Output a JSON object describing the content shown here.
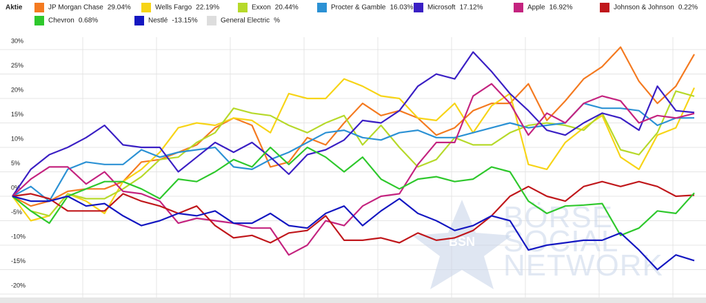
{
  "chart_data": {
    "type": "line",
    "legend_title": "Aktie",
    "watermark": [
      "BÖRSE",
      "SOCIAL",
      "NETWORK"
    ],
    "watermark_badge": "BSN",
    "categories": [
      null,
      null,
      null,
      null,
      null,
      null,
      null,
      null,
      null,
      null,
      null,
      null,
      null,
      null,
      null,
      null,
      null,
      null,
      null,
      null,
      null,
      null,
      null,
      null,
      null,
      null,
      null,
      null,
      null,
      null,
      null,
      null,
      null,
      null,
      null,
      null,
      null,
      null
    ],
    "ylim": [
      -20.7,
      31.4
    ],
    "yticks": [
      {
        "value": -20,
        "label": "-20%"
      },
      {
        "value": -15,
        "label": "-15%"
      },
      {
        "value": -10,
        "label": "-10%"
      },
      {
        "value": -5,
        "label": "-5%"
      },
      {
        "value": 0,
        "label": "0%"
      },
      {
        "value": 5,
        "label": "5%"
      },
      {
        "value": 10,
        "label": "10%"
      },
      {
        "value": 15,
        "label": "15%"
      },
      {
        "value": 20,
        "label": "20%"
      },
      {
        "value": 25,
        "label": "25%"
      },
      {
        "value": 30,
        "label": "30%"
      }
    ],
    "grid": true,
    "series": [
      {
        "name": "JP Morgan Chase",
        "change_label": "29.04%",
        "color": "#f47a20",
        "values": [
          0,
          -2,
          -1,
          1,
          1.5,
          1.5,
          3,
          7,
          7.5,
          9,
          10.5,
          14,
          16,
          14.5,
          6,
          7,
          12,
          10.5,
          15,
          19,
          16.5,
          17.5,
          16,
          12.5,
          14,
          17.5,
          19,
          19,
          23,
          15.5,
          19.5,
          24,
          26.5,
          30.5,
          23.5,
          19,
          22.5,
          29.04
        ]
      },
      {
        "name": "Wells Fargo",
        "change_label": "22.19%",
        "color": "#f7d417",
        "values": [
          0,
          -5,
          -4,
          0.5,
          -1,
          -3.5,
          3,
          5.5,
          9,
          14,
          15,
          14.5,
          16,
          15.5,
          13,
          21,
          20,
          20,
          24,
          22.5,
          20.5,
          20,
          16,
          15.5,
          19,
          13,
          18.5,
          21,
          6.5,
          5.5,
          11,
          14,
          16.5,
          8,
          5.5,
          12.5,
          14,
          22.19
        ]
      },
      {
        "name": "Exxon",
        "change_label": "20.44%",
        "color": "#b6d92a",
        "values": [
          0,
          -3,
          -4,
          0.5,
          -0.5,
          -0.5,
          1.5,
          4,
          7.5,
          8,
          11,
          13,
          18,
          17,
          16.5,
          14.5,
          13,
          15,
          16.5,
          10.5,
          14.5,
          10,
          6,
          7.5,
          12,
          10.5,
          10.5,
          13,
          14.5,
          15,
          14.5,
          13.5,
          17,
          9.5,
          8.5,
          13,
          21.5,
          20.44
        ]
      },
      {
        "name": "Procter & Gamble",
        "change_label": "16.03%",
        "color": "#2b91d4",
        "values": [
          0,
          2,
          -1,
          5.5,
          7,
          6.5,
          6.5,
          9.5,
          8,
          9,
          9.5,
          10,
          6,
          5.5,
          7.5,
          9,
          11,
          13,
          13.5,
          12,
          11.5,
          13,
          13.5,
          12,
          12,
          13,
          14,
          15,
          14,
          14.5,
          15,
          19,
          18,
          18,
          17.5,
          14.5,
          16,
          16.03
        ]
      },
      {
        "name": "Microsoft",
        "change_label": "17.12%",
        "color": "#3a1fc4",
        "values": [
          0,
          5.5,
          8.5,
          10,
          12,
          14.5,
          10.5,
          10,
          10,
          5,
          8,
          11,
          9,
          11,
          8,
          4.5,
          8.5,
          9.5,
          11.5,
          15.5,
          15,
          17.5,
          22.5,
          25,
          24,
          29.5,
          25.5,
          21,
          17.5,
          13.5,
          12.5,
          15,
          17,
          16,
          13.5,
          22.5,
          17.5,
          17.12
        ]
      },
      {
        "name": "Apple",
        "change_label": "16.92%",
        "color": "#c4237f",
        "values": [
          0,
          3.5,
          6,
          6,
          2.5,
          5,
          1,
          0.5,
          -1,
          -5.5,
          -4.5,
          -5,
          -5.5,
          -6.5,
          -6.5,
          -12,
          -10,
          -5,
          -6,
          -2,
          0,
          0.5,
          6.5,
          11,
          11,
          20.5,
          23,
          19,
          12.5,
          17,
          15,
          19,
          20.5,
          19.5,
          15,
          16.5,
          16,
          16.92
        ]
      },
      {
        "name": "Johnson & Johnson",
        "change_label": "0.22%",
        "color": "#c0171b",
        "values": [
          0,
          0.5,
          -0.5,
          -3,
          -3,
          -3,
          0.5,
          -1,
          -2,
          -3.5,
          -2,
          -6,
          -8.5,
          -8,
          -9.5,
          -7.5,
          -7,
          -4,
          -9,
          -9,
          -8.5,
          -9.5,
          -7.5,
          -9,
          -8.5,
          -7,
          -4,
          0,
          2,
          0,
          -1,
          2,
          3,
          2,
          3,
          2,
          0,
          0.22
        ]
      },
      {
        "name": "Chevron",
        "change_label": "0.68%",
        "color": "#2ec82c",
        "values": [
          0,
          -3,
          -5.5,
          0,
          1.5,
          3,
          3,
          1.5,
          -0.5,
          3.5,
          3,
          5,
          7.5,
          6,
          10,
          6.5,
          10,
          8,
          5,
          8,
          3.5,
          1.5,
          3.5,
          4,
          3,
          3.5,
          6,
          5,
          -1,
          -3.5,
          -2,
          -1.8,
          -1.5,
          -8,
          -6.5,
          -3,
          -3.5,
          0.68
        ]
      },
      {
        "name": "Nestlé",
        "change_label": "-13.15%",
        "color": "#1417c1",
        "values": [
          0,
          -1,
          -1,
          0,
          -2,
          -1.5,
          -4,
          -6,
          -5,
          -3.5,
          -4,
          -3,
          -5.5,
          -5.5,
          -3.5,
          -6,
          -6.5,
          -3.5,
          -2,
          -6,
          -3,
          -0.5,
          -3.5,
          -5,
          -7,
          -6,
          -4,
          -5,
          -11,
          -10,
          -9.5,
          -9,
          -9,
          -7.5,
          -11,
          -15,
          -12,
          -13.15
        ]
      },
      {
        "name": "General Electric",
        "change_label": "%",
        "color": "#dddddd",
        "values": [
          null,
          null,
          null,
          null,
          null,
          null,
          null,
          null,
          null,
          null,
          null,
          null,
          null,
          null,
          null,
          null,
          null,
          null,
          null,
          null,
          null,
          null,
          null,
          null,
          null,
          null,
          null,
          null,
          null,
          null,
          null,
          null,
          null,
          null,
          null,
          null,
          null,
          null
        ]
      }
    ]
  }
}
